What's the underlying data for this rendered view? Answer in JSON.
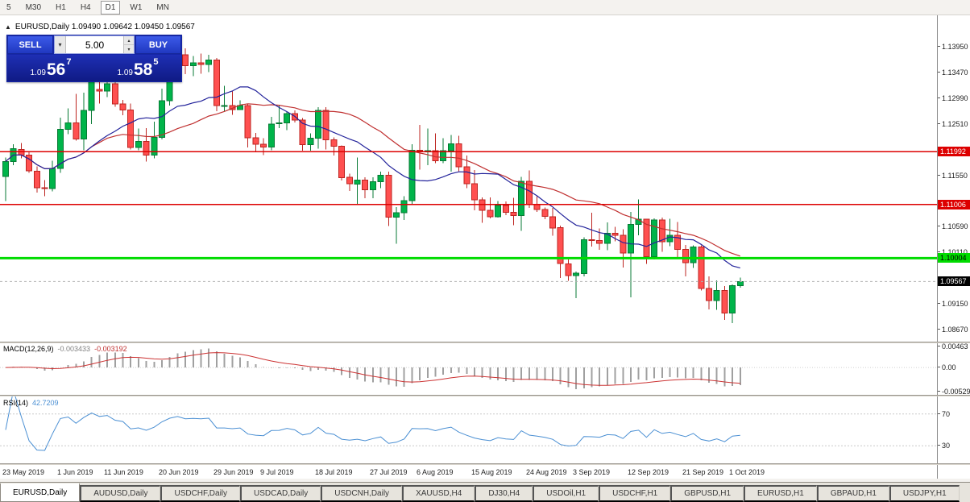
{
  "toolbar": {
    "timeframes": [
      {
        "label": "5",
        "active": false
      },
      {
        "label": "M30",
        "active": false
      },
      {
        "label": "H1",
        "active": false
      },
      {
        "label": "H4",
        "active": false
      },
      {
        "label": "D1",
        "active": true
      },
      {
        "label": "W1",
        "active": false
      },
      {
        "label": "MN",
        "active": false
      }
    ]
  },
  "chart_info": {
    "title_line": "EURUSD,Daily 1.09490 1.09642 1.09450 1.09567"
  },
  "trade_panel": {
    "sell_label": "SELL",
    "buy_label": "BUY",
    "volume": "5.00",
    "sell_price": {
      "prefix": "1.09",
      "big": "56",
      "sup": "7"
    },
    "buy_price": {
      "prefix": "1.09",
      "big": "58",
      "sup": "5"
    }
  },
  "chart_data": {
    "type": "candlestick",
    "symbol": "EURUSD",
    "timeframe": "Daily",
    "layout": {
      "x0": 7,
      "dx": 9.7,
      "body_w": 7
    },
    "price_scale": {
      "top": 1.14522,
      "bottom": 1.08445
    },
    "colors": {
      "bull": "#00b44a",
      "bull_border": "#077a34",
      "bear": "#ff5050",
      "bear_border": "#bd2420",
      "ma_fast": "#23239b",
      "ma_slow": "#c03030",
      "macd_hist": "#a0a0a0",
      "macd_signal": "#cc3333",
      "rsi": "#4a8fd3"
    },
    "y_ticks": [
      "1.13950",
      "1.13470",
      "1.12990",
      "1.12510",
      "1.11550",
      "1.10590",
      "1.10110",
      "1.09150",
      "1.08670"
    ],
    "hlines": [
      {
        "label": "1.11992",
        "price": 1.11992,
        "color": "#dd0000",
        "tag_bg": "#dd0000",
        "tag_fg": "#ffffff",
        "width": 1.5
      },
      {
        "label": "1.11006",
        "price": 1.11006,
        "color": "#dd0000",
        "tag_bg": "#dd0000",
        "tag_fg": "#ffffff",
        "width": 1.5
      },
      {
        "label": "1.10004",
        "price": 1.10004,
        "color": "#00dc00",
        "tag_bg": "#00dc00",
        "tag_fg": "#000000",
        "width": 3
      }
    ],
    "current_price": {
      "label": "1.09567",
      "price": 1.09567,
      "tag_bg": "#000000",
      "tag_fg": "#ffffff"
    },
    "x_labels": [
      {
        "text": "23 May 2019",
        "i": 0
      },
      {
        "text": "1 Jun 2019",
        "i": 7
      },
      {
        "text": "11 Jun 2019",
        "i": 13
      },
      {
        "text": "20 Jun 2019",
        "i": 20
      },
      {
        "text": "29 Jun 2019",
        "i": 27
      },
      {
        "text": "9 Jul 2019",
        "i": 33
      },
      {
        "text": "18 Jul 2019",
        "i": 40
      },
      {
        "text": "27 Jul 2019",
        "i": 47
      },
      {
        "text": "6 Aug 2019",
        "i": 53
      },
      {
        "text": "15 Aug 2019",
        "i": 60
      },
      {
        "text": "24 Aug 2019",
        "i": 67
      },
      {
        "text": "3 Sep 2019",
        "i": 73
      },
      {
        "text": "12 Sep 2019",
        "i": 80
      },
      {
        "text": "21 Sep 2019",
        "i": 87
      },
      {
        "text": "1 Oct 2019",
        "i": 93
      }
    ],
    "candles": [
      [
        1.1153,
        1.1188,
        1.1107,
        1.1181
      ],
      [
        1.1181,
        1.1213,
        1.1174,
        1.1205
      ],
      [
        1.1203,
        1.1215,
        1.1187,
        1.1193
      ],
      [
        1.1193,
        1.12,
        1.116,
        1.1163
      ],
      [
        1.1163,
        1.1172,
        1.1123,
        1.1132
      ],
      [
        1.1132,
        1.1146,
        1.1116,
        1.113
      ],
      [
        1.113,
        1.1182,
        1.1125,
        1.1168
      ],
      [
        1.1168,
        1.1263,
        1.116,
        1.1241
      ],
      [
        1.1241,
        1.128,
        1.1232,
        1.1253
      ],
      [
        1.1253,
        1.1307,
        1.122,
        1.1223
      ],
      [
        1.1223,
        1.1309,
        1.1202,
        1.1276
      ],
      [
        1.1276,
        1.1348,
        1.1251,
        1.1335
      ],
      [
        1.1315,
        1.1332,
        1.1289,
        1.1312
      ],
      [
        1.1312,
        1.1338,
        1.1301,
        1.1326
      ],
      [
        1.1326,
        1.1344,
        1.1283,
        1.1288
      ],
      [
        1.1288,
        1.1296,
        1.1267,
        1.1277
      ],
      [
        1.1277,
        1.1289,
        1.1203,
        1.1207
      ],
      [
        1.1207,
        1.1242,
        1.1202,
        1.1218
      ],
      [
        1.1218,
        1.1243,
        1.1181,
        1.1193
      ],
      [
        1.1193,
        1.1255,
        1.1187,
        1.1226
      ],
      [
        1.1226,
        1.1317,
        1.1222,
        1.1294
      ],
      [
        1.1294,
        1.136,
        1.1285,
        1.135
      ],
      [
        1.135,
        1.1388,
        1.134,
        1.138
      ],
      [
        1.138,
        1.1392,
        1.1344,
        1.136
      ],
      [
        1.136,
        1.1378,
        1.134,
        1.1365
      ],
      [
        1.1365,
        1.1382,
        1.1345,
        1.1362
      ],
      [
        1.1362,
        1.138,
        1.1348,
        1.137
      ],
      [
        1.137,
        1.1374,
        1.1275,
        1.1285
      ],
      [
        1.1285,
        1.1322,
        1.1275,
        1.1285
      ],
      [
        1.1285,
        1.1312,
        1.1268,
        1.1278
      ],
      [
        1.1278,
        1.1295,
        1.1277,
        1.1285
      ],
      [
        1.1285,
        1.1288,
        1.1207,
        1.1225
      ],
      [
        1.1225,
        1.1234,
        1.1199,
        1.1213
      ],
      [
        1.1213,
        1.1224,
        1.1193,
        1.1208
      ],
      [
        1.1208,
        1.1264,
        1.1202,
        1.1251
      ],
      [
        1.1251,
        1.1285,
        1.1243,
        1.1253
      ],
      [
        1.1253,
        1.1275,
        1.1239,
        1.127
      ],
      [
        1.127,
        1.1276,
        1.1254,
        1.1258
      ],
      [
        1.1258,
        1.1262,
        1.1201,
        1.1212
      ],
      [
        1.1212,
        1.1233,
        1.1201,
        1.1224
      ],
      [
        1.1224,
        1.1282,
        1.1205,
        1.1276
      ],
      [
        1.1276,
        1.1282,
        1.1203,
        1.1221
      ],
      [
        1.1221,
        1.1226,
        1.1192,
        1.1209
      ],
      [
        1.1209,
        1.1211,
        1.1145,
        1.1151
      ],
      [
        1.1151,
        1.1158,
        1.1126,
        1.1139
      ],
      [
        1.1139,
        1.1188,
        1.1101,
        1.1146
      ],
      [
        1.1146,
        1.1151,
        1.1112,
        1.1128
      ],
      [
        1.1128,
        1.1151,
        1.1112,
        1.1143
      ],
      [
        1.1143,
        1.1162,
        1.1131,
        1.1155
      ],
      [
        1.1155,
        1.1162,
        1.106,
        1.1077
      ],
      [
        1.1077,
        1.1096,
        1.1027,
        1.1085
      ],
      [
        1.1085,
        1.1116,
        1.1072,
        1.1108
      ],
      [
        1.1108,
        1.1213,
        1.1101,
        1.1202
      ],
      [
        1.1202,
        1.1249,
        1.1166,
        1.12
      ],
      [
        1.12,
        1.1242,
        1.1174,
        1.1201
      ],
      [
        1.1201,
        1.1233,
        1.1178,
        1.1182
      ],
      [
        1.1182,
        1.1224,
        1.1178,
        1.1201
      ],
      [
        1.1201,
        1.123,
        1.1162,
        1.1214
      ],
      [
        1.1214,
        1.1229,
        1.1163,
        1.1171
      ],
      [
        1.1171,
        1.1192,
        1.1131,
        1.1139
      ],
      [
        1.1139,
        1.1165,
        1.109,
        1.1109
      ],
      [
        1.1109,
        1.1114,
        1.1066,
        1.109
      ],
      [
        1.109,
        1.1114,
        1.1075,
        1.1078
      ],
      [
        1.1078,
        1.1107,
        1.1076,
        1.1099
      ],
      [
        1.1099,
        1.1106,
        1.1081,
        1.1086
      ],
      [
        1.1086,
        1.1113,
        1.1062,
        1.108
      ],
      [
        1.108,
        1.1152,
        1.1051,
        1.1144
      ],
      [
        1.1144,
        1.1164,
        1.1094,
        1.1101
      ],
      [
        1.1101,
        1.1116,
        1.1087,
        1.1091
      ],
      [
        1.1091,
        1.1095,
        1.1073,
        1.1078
      ],
      [
        1.1078,
        1.1094,
        1.1042,
        1.1057
      ],
      [
        1.1057,
        1.1061,
        1.0963,
        1.099
      ],
      [
        1.099,
        1.0998,
        1.0958,
        1.0968
      ],
      [
        1.0968,
        1.0975,
        1.0926,
        1.0972
      ],
      [
        1.0972,
        1.1039,
        1.0966,
        1.1035
      ],
      [
        1.1035,
        1.1085,
        1.1022,
        1.1033
      ],
      [
        1.1033,
        1.1056,
        1.1016,
        1.1028
      ],
      [
        1.1028,
        1.1067,
        1.1015,
        1.1047
      ],
      [
        1.1047,
        1.1059,
        1.1032,
        1.1043
      ],
      [
        1.1043,
        1.1054,
        1.0983,
        1.101
      ],
      [
        1.101,
        1.1087,
        1.0927,
        1.1063
      ],
      [
        1.1063,
        1.111,
        1.1043,
        1.1073
      ],
      [
        1.1073,
        1.1073,
        1.099,
        1.1003
      ],
      [
        1.1003,
        1.1075,
        1.0998,
        1.1072
      ],
      [
        1.1072,
        1.1076,
        1.1012,
        1.1031
      ],
      [
        1.1031,
        1.1074,
        1.1023,
        1.1043
      ],
      [
        1.1043,
        1.1068,
        1.1,
        1.1017
      ],
      [
        1.1017,
        1.1025,
        1.0966,
        1.0992
      ],
      [
        1.0992,
        1.1024,
        1.0982,
        1.1021
      ],
      [
        1.1021,
        1.1024,
        1.094,
        1.0944
      ],
      [
        1.0944,
        1.0966,
        1.0905,
        1.0921
      ],
      [
        1.0921,
        1.0959,
        1.0904,
        1.094
      ],
      [
        1.094,
        1.0948,
        1.0885,
        1.0898
      ],
      [
        1.0898,
        1.0951,
        1.0879,
        1.0949
      ],
      [
        1.0949,
        1.09642,
        1.0945,
        1.09567
      ]
    ]
  },
  "macd_panel": {
    "label": "MACD(12,26,9)",
    "value_main": "-0.003433",
    "value_signal": "-0.003192",
    "axis": [
      "0.00463",
      "0.00",
      "-0.00529"
    ],
    "scale": {
      "max": 0.00463,
      "min": -0.00529
    }
  },
  "rsi_panel": {
    "label": "RSI(14)",
    "value": "42.7209",
    "levels": [
      "70",
      "30"
    ],
    "scale": {
      "max": 92,
      "min": 8,
      "level_high": 70,
      "level_low": 30
    }
  },
  "tabs": [
    {
      "label": "EURUSD,Daily",
      "active": true
    },
    {
      "label": "AUDUSD,Daily",
      "active": false
    },
    {
      "label": "USDCHF,Daily",
      "active": false
    },
    {
      "label": "USDCAD,Daily",
      "active": false
    },
    {
      "label": "USDCNH,Daily",
      "active": false
    },
    {
      "label": "XAUUSD,H4",
      "active": false
    },
    {
      "label": "DJ30,H4",
      "active": false
    },
    {
      "label": "USDOil,H1",
      "active": false
    },
    {
      "label": "USDCHF,H1",
      "active": false
    },
    {
      "label": "GBPUSD,H1",
      "active": false
    },
    {
      "label": "EURUSD,H1",
      "active": false
    },
    {
      "label": "GBPAUD,H1",
      "active": false
    },
    {
      "label": "USDJPY,H1",
      "active": false
    }
  ]
}
